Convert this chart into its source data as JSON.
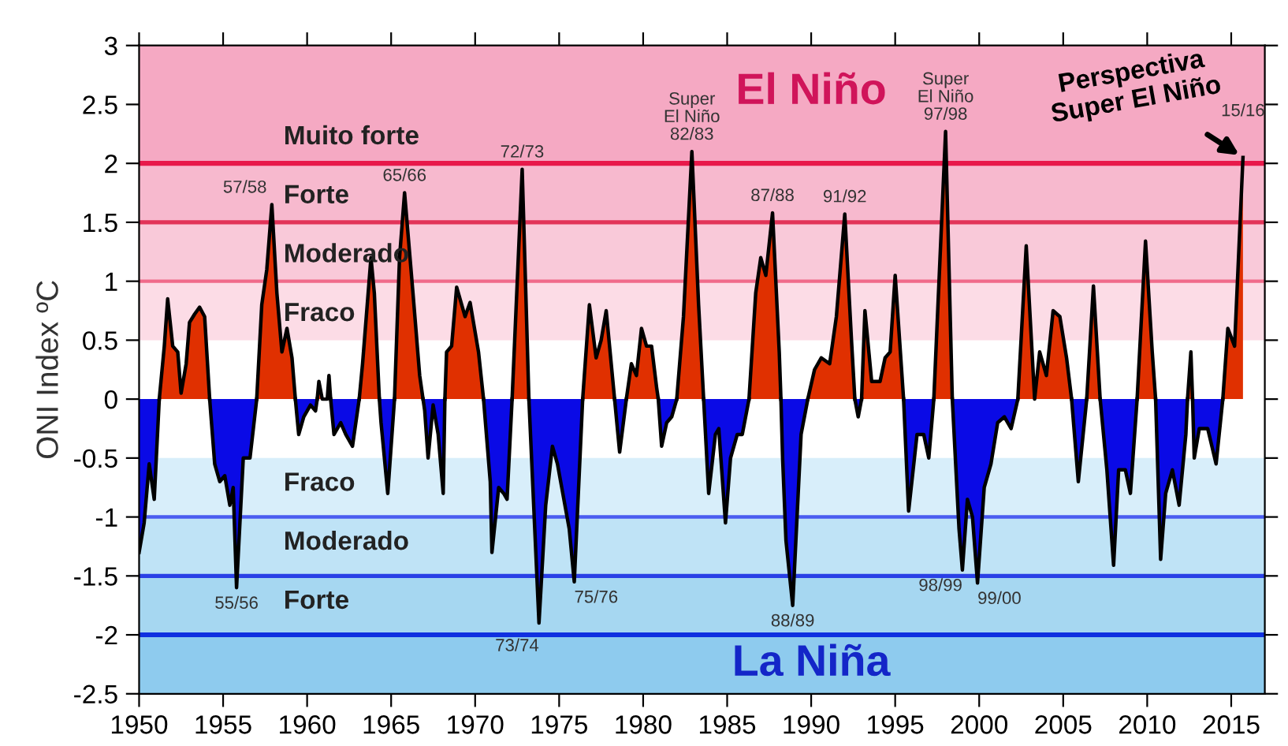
{
  "chart_data": {
    "type": "area",
    "ylabel": "ONI Index ºC",
    "xlim": [
      1950,
      2017
    ],
    "xticks": [
      1950,
      1955,
      1960,
      1965,
      1970,
      1975,
      1980,
      1985,
      1990,
      1995,
      2000,
      2005,
      2010,
      2015
    ],
    "ylim": [
      -2.5,
      3
    ],
    "yticks": [
      -2.5,
      -2,
      -1.5,
      -1,
      -0.5,
      0,
      0.5,
      1,
      1.5,
      2,
      2.5,
      3
    ],
    "grid": false,
    "x": [
      1950.0,
      1950.3,
      1950.6,
      1950.9,
      1951.2,
      1951.5,
      1951.7,
      1952.0,
      1952.3,
      1952.5,
      1952.8,
      1953.0,
      1953.3,
      1953.6,
      1953.9,
      1954.2,
      1954.5,
      1954.8,
      1955.1,
      1955.4,
      1955.6,
      1955.8,
      1956.2,
      1956.6,
      1957.0,
      1957.3,
      1957.6,
      1957.9,
      1958.2,
      1958.5,
      1958.8,
      1959.1,
      1959.3,
      1959.5,
      1959.8,
      1960.2,
      1960.5,
      1960.6,
      1960.7,
      1960.9,
      1961.1,
      1961.2,
      1961.3,
      1961.4,
      1961.6,
      1962.0,
      1962.3,
      1962.7,
      1963.0,
      1963.1,
      1963.3,
      1963.8,
      1964.0,
      1964.3,
      1964.4,
      1964.8,
      1965.2,
      1965.5,
      1965.8,
      1966.3,
      1966.7,
      1966.9,
      1967.0,
      1967.2,
      1967.5,
      1967.8,
      1968.1,
      1968.2,
      1968.3,
      1968.6,
      1968.9,
      1969.4,
      1969.7,
      1970.2,
      1970.5,
      1970.9,
      1971.0,
      1971.4,
      1971.7,
      1971.9,
      1972.2,
      1972.8,
      1973.2,
      1973.8,
      1974.2,
      1974.6,
      1974.9,
      1975.6,
      1975.9,
      1976.4,
      1976.8,
      1977.2,
      1977.5,
      1977.8,
      1978.3,
      1978.6,
      1979.0,
      1979.3,
      1979.6,
      1979.9,
      1980.2,
      1980.5,
      1980.8,
      1980.9,
      1981.1,
      1981.4,
      1981.7,
      1982.0,
      1982.4,
      1982.9,
      1983.3,
      1983.6,
      1983.9,
      1984.3,
      1984.5,
      1984.9,
      1985.2,
      1985.6,
      1985.9,
      1986.3,
      1986.7,
      1987.0,
      1987.3,
      1987.7,
      1988.1,
      1988.2,
      1988.3,
      1988.5,
      1988.9,
      1989.4,
      1989.8,
      1990.2,
      1990.6,
      1991.1,
      1991.5,
      1992.0,
      1992.4,
      1992.6,
      1992.8,
      1993.0,
      1993.2,
      1993.6,
      1994.1,
      1994.4,
      1994.7,
      1995.0,
      1995.5,
      1995.8,
      1996.3,
      1996.7,
      1997.0,
      1997.3,
      1998.0,
      1998.4,
      1998.8,
      1999.0,
      1999.3,
      1999.6,
      1999.9,
      2000.3,
      2000.7,
      2001.1,
      2001.5,
      2001.9,
      2002.3,
      2002.8,
      2003.3,
      2003.6,
      2004.0,
      2004.4,
      2004.8,
      2005.2,
      2005.5,
      2005.9,
      2006.4,
      2006.8,
      2007.2,
      2007.6,
      2008.0,
      2008.3,
      2008.7,
      2009.0,
      2009.4,
      2009.9,
      2010.3,
      2010.5,
      2010.8,
      2011.1,
      2011.5,
      2011.9,
      2012.3,
      2012.4,
      2012.6,
      2012.7,
      2012.8,
      2013.1,
      2013.6,
      2014.1,
      2014.5,
      2014.8,
      2015.2,
      2015.7
    ],
    "series": [
      {
        "color": "#e03000",
        "values": [
          null,
          null,
          null,
          null,
          0,
          0.45,
          0.85,
          0.45,
          0.4,
          0.05,
          0.3,
          0.65,
          0.72,
          0.78,
          0.7,
          0,
          null,
          null,
          null,
          null,
          null,
          null,
          null,
          null,
          0,
          0.8,
          1.1,
          1.65,
          0.9,
          0.4,
          0.6,
          0.35,
          0,
          null,
          null,
          null,
          null,
          0,
          0.15,
          0,
          0,
          0,
          0.2,
          0,
          null,
          null,
          null,
          null,
          null,
          0,
          0.3,
          1.2,
          0.9,
          0,
          null,
          null,
          0,
          1.2,
          1.75,
          0.9,
          0.2,
          0,
          null,
          null,
          null,
          null,
          null,
          0,
          0.4,
          0.45,
          0.95,
          0.7,
          0.82,
          0.4,
          0,
          null,
          null,
          null,
          null,
          null,
          0,
          1.95,
          0,
          null,
          null,
          null,
          null,
          null,
          null,
          0,
          0.8,
          0.35,
          0.5,
          0.75,
          0,
          null,
          0,
          0.3,
          0.2,
          0.6,
          0.45,
          0.45,
          0.1,
          0,
          null,
          null,
          null,
          0,
          0.7,
          2.1,
          0.8,
          0,
          null,
          null,
          null,
          null,
          null,
          null,
          null,
          0,
          0.9,
          1.2,
          1.05,
          1.58,
          0.4,
          0,
          null,
          null,
          null,
          null,
          0,
          0.25,
          0.35,
          0.3,
          0.7,
          1.57,
          0.5,
          0,
          null,
          0,
          0.75,
          0.15,
          0.15,
          0.35,
          0.4,
          1.05,
          0,
          null,
          null,
          null,
          null,
          0,
          2.27,
          0,
          null,
          null,
          null,
          null,
          null,
          null,
          null,
          null,
          null,
          null,
          0,
          1.3,
          0,
          0.4,
          0.2,
          0.75,
          0.7,
          0.35,
          0,
          null,
          0,
          0.96,
          0,
          null,
          null,
          null,
          null,
          null,
          0,
          1.34,
          0.4,
          0,
          null,
          null,
          null,
          null,
          null,
          0,
          0.4,
          0,
          null,
          null,
          null,
          null,
          0,
          0.6,
          0.45,
          2.05
        ]
      },
      {
        "color": "#0a0ae6",
        "values": [
          -1.3,
          -1.05,
          -0.55,
          -0.85,
          0,
          null,
          null,
          null,
          null,
          null,
          null,
          null,
          null,
          null,
          null,
          0,
          -0.55,
          -0.7,
          -0.65,
          -0.9,
          -0.75,
          -1.6,
          -0.5,
          -0.5,
          0,
          null,
          null,
          null,
          null,
          null,
          null,
          null,
          0,
          -0.3,
          -0.15,
          -0.05,
          -0.1,
          0,
          null,
          null,
          null,
          null,
          null,
          0,
          -0.3,
          -0.2,
          -0.3,
          -0.4,
          -0.1,
          0,
          null,
          null,
          null,
          0,
          -0.2,
          -0.8,
          0,
          null,
          null,
          null,
          null,
          0,
          -0.1,
          -0.5,
          -0.05,
          -0.3,
          -0.8,
          0,
          null,
          null,
          null,
          null,
          null,
          null,
          0,
          -0.7,
          -1.3,
          -0.75,
          -0.8,
          -0.85,
          0,
          null,
          0,
          -1.9,
          -0.9,
          -0.4,
          -0.55,
          -1.1,
          -1.55,
          0,
          null,
          null,
          null,
          null,
          0,
          -0.45,
          0,
          null,
          null,
          null,
          null,
          null,
          null,
          0,
          -0.4,
          -0.2,
          -0.15,
          0,
          null,
          null,
          null,
          0,
          -0.8,
          -0.3,
          -0.25,
          -1.05,
          -0.5,
          -0.3,
          -0.3,
          0,
          null,
          null,
          null,
          null,
          null,
          0,
          -0.5,
          -1.2,
          -1.75,
          -0.3,
          0,
          null,
          null,
          null,
          null,
          null,
          null,
          0,
          -0.15,
          0,
          null,
          null,
          null,
          null,
          null,
          null,
          0,
          -0.95,
          -0.3,
          -0.3,
          -0.5,
          0,
          null,
          0,
          -1.1,
          -1.45,
          -0.85,
          -1.0,
          -1.56,
          -0.75,
          -0.55,
          -0.2,
          -0.15,
          -0.25,
          0,
          null,
          null,
          null,
          null,
          null,
          null,
          null,
          0,
          -0.7,
          0,
          null,
          0,
          -0.6,
          -1.41,
          -0.6,
          -0.6,
          -0.8,
          0,
          null,
          null,
          0,
          -1.36,
          -0.8,
          -0.6,
          -0.9,
          -0.3,
          0,
          null,
          0,
          -0.5,
          -0.25,
          -0.25,
          -0.55,
          0,
          null,
          null,
          null
        ]
      }
    ],
    "bands": [
      {
        "axis": "y",
        "from": 2,
        "to": 3,
        "label": "Muito forte",
        "color": "#f5a9c3"
      },
      {
        "axis": "y",
        "from": 1.5,
        "to": 2,
        "label": "Forte",
        "color": "#f7b9ce"
      },
      {
        "axis": "y",
        "from": 1,
        "to": 1.5,
        "label": "Moderado",
        "color": "#f9c9d9"
      },
      {
        "axis": "y",
        "from": 0.5,
        "to": 1,
        "label": "Fraco",
        "color": "#fcdce6"
      },
      {
        "axis": "y",
        "from": -0.5,
        "to": -1,
        "label": "Fraco",
        "color": "#d8eefa"
      },
      {
        "axis": "y",
        "from": -1,
        "to": -1.5,
        "label": "Moderado",
        "color": "#bfe3f6"
      },
      {
        "axis": "y",
        "from": -1.5,
        "to": -2,
        "label": "Forte",
        "color": "#a6d7f1"
      },
      {
        "axis": "y",
        "from": -2,
        "to": -2.5,
        "label": null,
        "color": "#8ecbee"
      }
    ],
    "ref_lines": [
      {
        "axis": "y",
        "value": 2,
        "label": null,
        "color": "#e8184a"
      },
      {
        "axis": "y",
        "value": 1.5,
        "label": null,
        "color": "#e23458"
      },
      {
        "axis": "y",
        "value": 1,
        "label": null,
        "color": "#f06a8a"
      },
      {
        "axis": "y",
        "value": -1,
        "label": null,
        "color": "#4a5cf0"
      },
      {
        "axis": "y",
        "value": -1.5,
        "label": null,
        "color": "#2a40e6"
      },
      {
        "axis": "y",
        "value": -2,
        "label": null,
        "color": "#1030e0"
      }
    ],
    "annotations": [
      "El Niño",
      "La Niña",
      {
        "text": "55/56",
        "x": 1955.8,
        "y": -1.6
      },
      {
        "text": "57/58",
        "x": 1957.9,
        "y": 1.65
      },
      {
        "text": "65/66",
        "x": 1965.8,
        "y": 1.75
      },
      {
        "text": "72/73",
        "x": 1972.8,
        "y": 1.95
      },
      {
        "text": "73/74",
        "x": 1973.8,
        "y": -1.9
      },
      {
        "text": "75/76",
        "x": 1975.9,
        "y": -1.55
      },
      {
        "text": "Super\nEl Niño\n82/83",
        "x": 1982.9,
        "y": 2.1
      },
      {
        "text": "87/88",
        "x": 1987.7,
        "y": 1.58
      },
      {
        "text": "88/89",
        "x": 1988.9,
        "y": -1.75
      },
      {
        "text": "91/92",
        "x": 1992.0,
        "y": 1.57
      },
      {
        "text": "Super\nEl Niño\n97/98",
        "x": 1998.0,
        "y": 2.27
      },
      {
        "text": "98/99",
        "x": 1999.0,
        "y": -1.45
      },
      {
        "text": "99/00",
        "x": 1999.9,
        "y": -1.56
      },
      {
        "text": "15/16",
        "x": 2015.7,
        "y": 2.05
      },
      {
        "text": "Perspectiva\nSuper El Niño",
        "x": 2015.7,
        "y": 2.05
      }
    ]
  }
}
